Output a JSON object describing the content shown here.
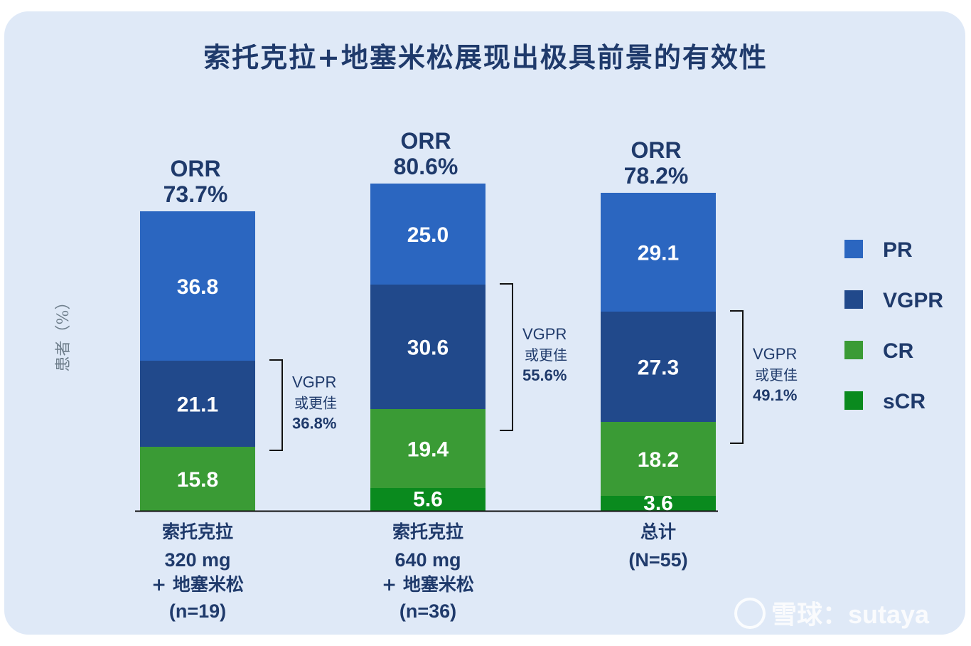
{
  "title": "索托克拉+地塞米松展现出极具前景的有效性",
  "watermark": "雪球：sutaya",
  "chart_data": {
    "type": "bar",
    "stacked": true,
    "ylabel": "患者（%）",
    "categories": [
      {
        "lines": [
          "索托克拉",
          "320 mg",
          "+ 地塞米松",
          "(n=19)"
        ]
      },
      {
        "lines": [
          "索托克拉",
          "640 mg",
          "+ 地塞米松",
          "(n=36)"
        ]
      },
      {
        "lines": [
          "总计",
          "(N=55)"
        ]
      }
    ],
    "orr": [
      {
        "label": "ORR",
        "value": "73.7%",
        "num": 73.7
      },
      {
        "label": "ORR",
        "value": "80.6%",
        "num": 80.6
      },
      {
        "label": "ORR",
        "value": "78.2%",
        "num": 78.2
      }
    ],
    "series": [
      {
        "name": "sCR",
        "color": "#0a8a1e",
        "values": [
          0,
          5.6,
          3.6
        ],
        "labels": [
          "",
          "5.6",
          "3.6"
        ]
      },
      {
        "name": "CR",
        "color": "#3a9b35",
        "values": [
          15.8,
          19.4,
          18.2
        ],
        "labels": [
          "15.8",
          "19.4",
          "18.2"
        ]
      },
      {
        "name": "VGPR",
        "color": "#21498b",
        "values": [
          21.1,
          30.6,
          27.3
        ],
        "labels": [
          "21.1",
          "30.6",
          "27.3"
        ]
      },
      {
        "name": "PR",
        "color": "#2b66c0",
        "values": [
          36.8,
          25.0,
          29.1
        ],
        "labels": [
          "36.8",
          "25.0",
          "29.1"
        ]
      }
    ],
    "brackets": [
      {
        "line1": "VGPR",
        "line2": "或更佳",
        "value": "36.8%"
      },
      {
        "line1": "VGPR",
        "line2": "或更佳",
        "value": "55.6%"
      },
      {
        "line1": "VGPR",
        "line2": "或更佳",
        "value": "49.1%"
      }
    ],
    "legend": {
      "position": "right",
      "items": [
        {
          "name": "PR",
          "color": "#2b66c0"
        },
        {
          "name": "VGPR",
          "color": "#21498b"
        },
        {
          "name": "CR",
          "color": "#3a9b35"
        },
        {
          "name": "sCR",
          "color": "#0a8a1e"
        }
      ]
    }
  }
}
